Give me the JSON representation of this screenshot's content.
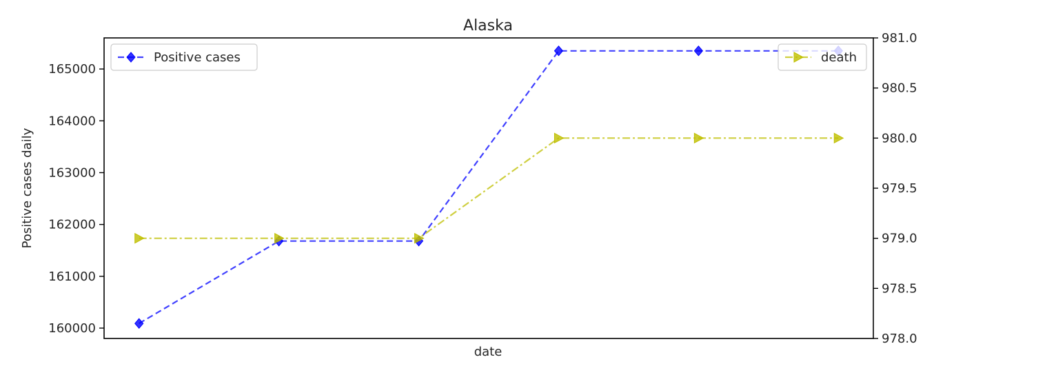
{
  "chart_data": {
    "type": "line",
    "title": "Alaska",
    "xlabel": "date",
    "x": [
      1,
      2,
      3,
      4,
      5,
      6
    ],
    "y_left": {
      "label": "Positive cases daily",
      "ylim": [
        159800,
        165600
      ],
      "ticks": [
        160000,
        161000,
        162000,
        163000,
        164000,
        165000
      ]
    },
    "y_right": {
      "label": "",
      "ylim": [
        978.0,
        981.0
      ],
      "ticks": [
        978.0,
        978.5,
        979.0,
        979.5,
        980.0,
        980.5,
        981.0
      ],
      "tick_labels": [
        "978.0",
        "978.5",
        "979.0",
        "979.5",
        "980.0",
        "980.5",
        "981.0"
      ]
    },
    "series": [
      {
        "name": "Positive cases",
        "axis": "left",
        "values": [
          160090,
          161680,
          161680,
          165350,
          165350,
          165350
        ],
        "color": "#0000ff",
        "line_style": "dashed",
        "marker": "diamond",
        "legend_position": "upper-left"
      },
      {
        "name": "death",
        "axis": "right",
        "values": [
          979,
          979,
          979,
          980,
          980,
          980
        ],
        "color": "#bfbf00",
        "line_style": "dash-dot",
        "marker": "triangle-right",
        "legend_position": "upper-right"
      }
    ],
    "grid": false
  }
}
